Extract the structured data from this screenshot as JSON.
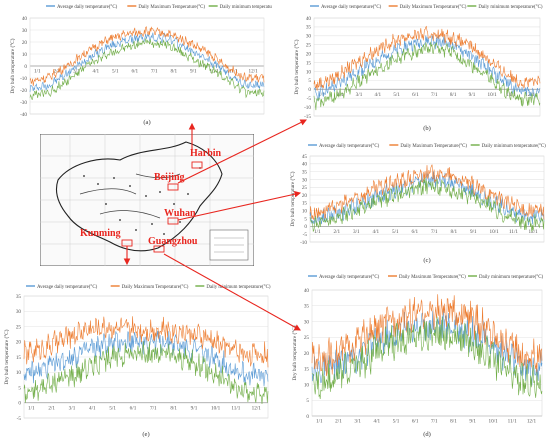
{
  "legend_labels": [
    "Average daily temperature(°C)",
    "Daily Maximum Temperature(°C)",
    "Daily minimum temperature(°C)"
  ],
  "colors": {
    "avg": "#5b9bd5",
    "max": "#ed7d31",
    "min": "#70ad47",
    "arrow": "#e8261f",
    "map_label": "#e8261f"
  },
  "y_axis_label": "Dry bulb temperature (°C)",
  "map": {
    "cities": [
      "Harbin",
      "Beijing",
      "Wuhan",
      "Kunming",
      "Guangzhou"
    ]
  },
  "chart_data": [
    {
      "panel": "(a)",
      "type": "line",
      "ylim": [
        -40,
        40
      ],
      "yticks": [
        -40,
        -30,
        -20,
        -10,
        0,
        10,
        20,
        30,
        40
      ],
      "x_ticks": [
        "1/1",
        "2/1",
        "3/1",
        "4/1",
        "5/1",
        "6/1",
        "7/1",
        "8/1",
        "9/1",
        "10/1",
        "11/1",
        "12/1"
      ],
      "series": [
        {
          "name": "Average daily temperature(°C)",
          "values": [
            -19,
            -16,
            -5,
            7,
            16,
            22,
            24,
            23,
            15,
            6,
            -5,
            -16
          ]
        },
        {
          "name": "Daily Maximum Temperature(°C)",
          "values": [
            -13,
            -9,
            1,
            13,
            22,
            27,
            29,
            27,
            21,
            12,
            0,
            -10
          ]
        },
        {
          "name": "Daily minimum temperature(°C)",
          "values": [
            -25,
            -22,
            -11,
            1,
            10,
            16,
            20,
            18,
            9,
            0,
            -10,
            -22
          ]
        }
      ]
    },
    {
      "panel": "(b)",
      "type": "line",
      "ylim": [
        -15,
        40
      ],
      "yticks": [
        -15,
        -10,
        -5,
        0,
        5,
        10,
        15,
        20,
        25,
        30,
        35,
        40
      ],
      "x_ticks": [
        "1/1",
        "2/1",
        "3/1",
        "4/1",
        "5/1",
        "6/1",
        "7/1",
        "8/1",
        "9/1",
        "10/1",
        "11/1",
        "12/1"
      ],
      "series": [
        {
          "name": "Average daily temperature(°C)",
          "values": [
            -3,
            1,
            8,
            14,
            20,
            25,
            27,
            26,
            21,
            13,
            5,
            -1
          ]
        },
        {
          "name": "Daily Maximum Temperature(°C)",
          "values": [
            2,
            6,
            13,
            20,
            26,
            30,
            31,
            30,
            26,
            19,
            10,
            4
          ]
        },
        {
          "name": "Daily minimum temperature(°C)",
          "values": [
            -8,
            -5,
            2,
            9,
            15,
            20,
            23,
            22,
            16,
            9,
            0,
            -6
          ]
        }
      ]
    },
    {
      "panel": "(c)",
      "type": "line",
      "ylim": [
        -10,
        45
      ],
      "yticks": [
        -10,
        -5,
        0,
        5,
        10,
        15,
        20,
        25,
        30,
        35,
        40,
        45
      ],
      "x_ticks": [
        "1/1",
        "2/1",
        "3/1",
        "4/1",
        "5/1",
        "6/1",
        "7/1",
        "8/1",
        "9/1",
        "10/1",
        "11/1",
        "12/1"
      ],
      "series": [
        {
          "name": "Average daily temperature(°C)",
          "values": [
            4,
            7,
            11,
            17,
            22,
            26,
            30,
            29,
            24,
            18,
            12,
            6
          ]
        },
        {
          "name": "Daily Maximum Temperature(°C)",
          "values": [
            8,
            11,
            16,
            22,
            27,
            30,
            34,
            33,
            28,
            22,
            16,
            10
          ]
        },
        {
          "name": "Daily minimum temperature(°C)",
          "values": [
            1,
            4,
            8,
            13,
            18,
            22,
            26,
            25,
            20,
            14,
            8,
            2
          ]
        }
      ]
    },
    {
      "panel": "(d)",
      "type": "line",
      "ylim": [
        0,
        40
      ],
      "yticks": [
        0,
        5,
        10,
        15,
        20,
        25,
        30,
        35,
        40
      ],
      "x_ticks": [
        "1/1",
        "2/1",
        "3/1",
        "4/1",
        "5/1",
        "6/1",
        "7/1",
        "8/1",
        "9/1",
        "10/1",
        "11/1",
        "12/1"
      ],
      "series": [
        {
          "name": "Average daily temperature(°C)",
          "values": [
            14,
            15,
            18,
            22,
            25,
            28,
            29,
            29,
            27,
            24,
            20,
            15
          ]
        },
        {
          "name": "Daily Maximum Temperature(°C)",
          "values": [
            18,
            19,
            22,
            26,
            30,
            32,
            33,
            33,
            32,
            28,
            24,
            19
          ]
        },
        {
          "name": "Daily minimum temperature(°C)",
          "values": [
            10,
            12,
            15,
            19,
            23,
            25,
            26,
            26,
            24,
            20,
            15,
            11
          ]
        }
      ]
    },
    {
      "panel": "(e)",
      "type": "line",
      "ylim": [
        -5,
        35
      ],
      "yticks": [
        -5,
        0,
        5,
        10,
        15,
        20,
        25,
        30,
        35
      ],
      "x_ticks": [
        "1/1",
        "2/1",
        "3/1",
        "4/1",
        "5/1",
        "6/1",
        "7/1",
        "8/1",
        "9/1",
        "10/1",
        "11/1",
        "12/1"
      ],
      "series": [
        {
          "name": "Average daily temperature(°C)",
          "values": [
            9,
            11,
            14,
            17,
            19,
            20,
            20,
            20,
            18,
            16,
            12,
            9
          ]
        },
        {
          "name": "Daily Maximum Temperature(°C)",
          "values": [
            16,
            18,
            21,
            24,
            25,
            24,
            24,
            24,
            23,
            21,
            18,
            16
          ]
        },
        {
          "name": "Daily minimum temperature(°C)",
          "values": [
            3,
            5,
            8,
            11,
            14,
            16,
            16,
            16,
            14,
            11,
            7,
            3
          ]
        }
      ]
    }
  ]
}
